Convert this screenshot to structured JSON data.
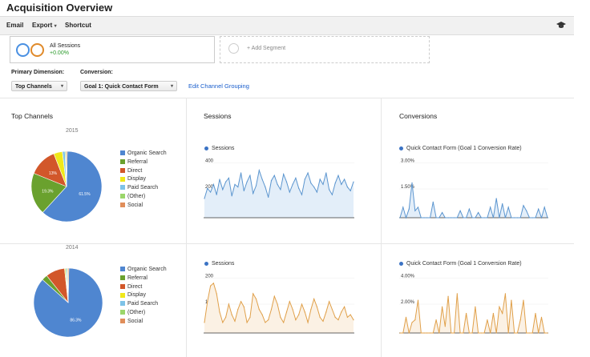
{
  "page_title": "Acquisition Overview",
  "toolbar": {
    "email": "Email",
    "export": "Export",
    "shortcut": "Shortcut"
  },
  "segments": {
    "all_sessions_label": "All Sessions",
    "all_sessions_change": "+0.00%",
    "add_segment": "+ Add Segment"
  },
  "dimension": {
    "primary_label": "Primary Dimension:",
    "conversion_label": "Conversion:",
    "primary_value": "Top Channels",
    "conversion_value": "Goal 1: Quick Contact Form",
    "edit_link": "Edit Channel Grouping"
  },
  "panels": {
    "top_channels": "Top Channels",
    "sessions": "Sessions",
    "conversions": "Conversions"
  },
  "legend_items": [
    "Organic Search",
    "Referral",
    "Direct",
    "Display",
    "Paid Search",
    "(Other)",
    "Social"
  ],
  "colors": {
    "organic": "#4f86d0",
    "referral": "#6aa12e",
    "direct": "#d2572a",
    "display": "#f0e81a",
    "paid": "#7ec3e8",
    "other": "#9bd66a",
    "social": "#e08e5a",
    "blue_line": "#5b95cf",
    "blue_fill": "#e3eef9",
    "orange_line": "#e0a04a",
    "orange_fill": "#fbf1e4"
  },
  "rows": [
    {
      "year": "2015",
      "pie_labels": [
        "61.5%",
        "19.3%",
        "13%"
      ],
      "sessions_legend": "Sessions",
      "sessions_ticks": [
        "400",
        "200"
      ],
      "conversions_legend": "Quick Contact Form (Goal 1 Conversion Rate)",
      "conversions_ticks": [
        "3.00%",
        "1.50%"
      ]
    },
    {
      "year": "2014",
      "pie_labels": [
        "86.3%"
      ],
      "sessions_legend": "Sessions",
      "sessions_ticks": [
        "200",
        "100"
      ],
      "conversions_legend": "Quick Contact Form (Goal 1 Conversion Rate)",
      "conversions_ticks": [
        "4.00%",
        "2.00%"
      ]
    }
  ],
  "chart_data": [
    {
      "type": "pie",
      "title": "2015",
      "categories": [
        "Organic Search",
        "Referral",
        "Direct",
        "Display",
        "Paid Search",
        "(Other)",
        "Social"
      ],
      "values": [
        61.5,
        19.3,
        13.0,
        4.0,
        1.2,
        0.5,
        0.5
      ]
    },
    {
      "type": "area",
      "legend": "Sessions",
      "ylim": [
        0,
        450
      ],
      "series": [
        {
          "name": "Sessions",
          "values": [
            150,
            230,
            200,
            260,
            180,
            300,
            220,
            280,
            310,
            170,
            260,
            240,
            350,
            210,
            280,
            330,
            190,
            250,
            370,
            300,
            240,
            160,
            290,
            330,
            260,
            220,
            340,
            280,
            200,
            260,
            310,
            230,
            180,
            300,
            350,
            270,
            240,
            200,
            300,
            260,
            350,
            220,
            180,
            270,
            330,
            260,
            300,
            240,
            210,
            280
          ]
        }
      ]
    },
    {
      "type": "line",
      "legend": "Quick Contact Form (Goal 1 Conversion Rate)",
      "ylim": [
        0,
        3.3
      ],
      "series": [
        {
          "name": "Quick Contact Form (Goal 1 Conversion Rate)",
          "values": [
            0,
            0.6,
            0,
            0.5,
            2.0,
            0.4,
            0.6,
            0,
            0,
            0,
            0,
            0.9,
            0,
            0,
            0.3,
            0,
            0,
            0,
            0,
            0,
            0.4,
            0,
            0,
            0.5,
            0,
            0,
            0.3,
            0,
            0,
            0,
            0.6,
            0,
            1.1,
            0,
            0.8,
            0,
            0.6,
            0,
            0,
            0,
            0,
            0.7,
            0.4,
            0,
            0,
            0,
            0.5,
            0,
            0.6,
            0
          ]
        }
      ]
    },
    {
      "type": "pie",
      "title": "2014",
      "categories": [
        "Organic Search",
        "Referral",
        "Direct",
        "Display",
        "Paid Search",
        "(Other)",
        "Social"
      ],
      "values": [
        86.3,
        2.7,
        9.0,
        0.5,
        0.5,
        0.5,
        0.5
      ]
    },
    {
      "type": "area",
      "legend": "Sessions",
      "ylim": [
        0,
        220
      ],
      "series": [
        {
          "name": "Sessions",
          "values": [
            40,
            120,
            180,
            190,
            150,
            80,
            40,
            60,
            110,
            70,
            45,
            90,
            120,
            100,
            40,
            60,
            150,
            130,
            90,
            70,
            40,
            50,
            90,
            140,
            110,
            60,
            40,
            80,
            120,
            90,
            50,
            70,
            110,
            80,
            40,
            90,
            130,
            100,
            60,
            45,
            80,
            120,
            90,
            60,
            50,
            80,
            100,
            60,
            70,
            50
          ]
        }
      ]
    },
    {
      "type": "line",
      "legend": "Quick Contact Form (Goal 1 Conversion Rate)",
      "ylim": [
        0,
        4.4
      ],
      "series": [
        {
          "name": "Quick Contact Form (Goal 1 Conversion Rate)",
          "values": [
            0,
            0,
            1.2,
            0,
            0.8,
            1.0,
            2.5,
            0,
            0,
            0,
            0,
            0,
            1.0,
            0,
            2.0,
            0.5,
            2.8,
            0,
            0,
            3.0,
            0,
            0,
            1.5,
            0,
            0,
            2.0,
            0,
            0,
            0,
            1.0,
            0,
            1.5,
            0,
            2.0,
            1.5,
            3.0,
            0,
            2.5,
            0,
            0,
            1.0,
            2.5,
            0,
            0,
            0,
            1.5,
            0,
            1.2,
            0,
            0
          ]
        }
      ]
    }
  ]
}
